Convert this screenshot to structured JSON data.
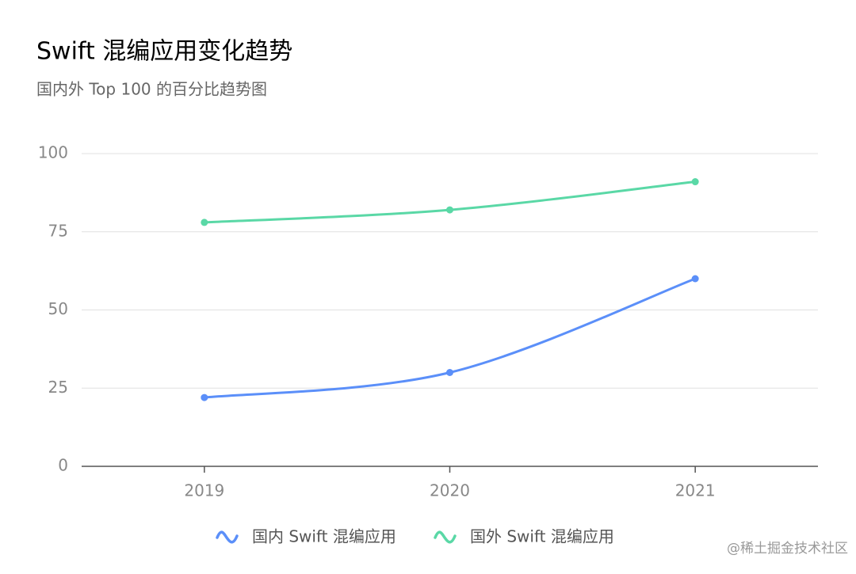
{
  "chart_data": {
    "type": "line",
    "title": "Swift 混编应用变化趋势",
    "subtitle": "国内外 Top 100 的百分比趋势图",
    "categories": [
      "2019",
      "2020",
      "2021"
    ],
    "series": [
      {
        "name": "国内 Swift 混编应用",
        "color": "#5b8ff9",
        "values": [
          22,
          30,
          60
        ]
      },
      {
        "name": "国外 Swift 混编应用",
        "color": "#5ad8a6",
        "values": [
          78,
          82,
          91
        ]
      }
    ],
    "ylim": [
      0,
      100
    ],
    "yticks": [
      0,
      25,
      50,
      75,
      100
    ],
    "grid": true,
    "legend": "bottom",
    "watermark": "@稀土掘金技术社区"
  }
}
